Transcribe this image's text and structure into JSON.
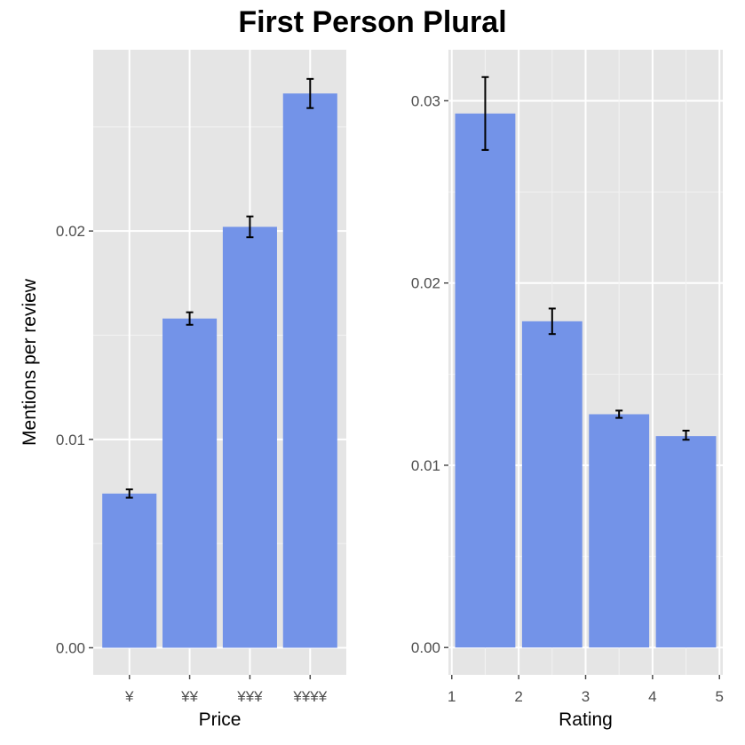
{
  "title": "First Person Plural",
  "colors": {
    "panel_bg": "#e5e5e5",
    "grid_major": "#ffffff",
    "grid_minor": "#f2f2f2",
    "bar": "#7393e8",
    "errorbar": "#000000",
    "tick_label": "#4d4d4d"
  },
  "chart_data": [
    {
      "type": "bar",
      "xlabel": "Price",
      "ylabel": "Mentions per review",
      "categories": [
        "¥",
        "¥¥",
        "¥¥¥",
        "¥¥¥¥"
      ],
      "values": [
        0.0074,
        0.0158,
        0.0202,
        0.0266
      ],
      "error_low": [
        0.0072,
        0.0155,
        0.0197,
        0.0259
      ],
      "error_high": [
        0.0076,
        0.0161,
        0.0207,
        0.0273
      ],
      "ylim": [
        -0.0013,
        0.0287
      ],
      "yticks": [
        0,
        0.01,
        0.02
      ],
      "ytick_labels": [
        "0.00",
        "0.01",
        "0.02"
      ],
      "grid": true
    },
    {
      "type": "bar",
      "xlabel": "Rating",
      "ylabel": "",
      "x_centers": [
        1.5,
        2.5,
        3.5,
        4.5
      ],
      "bar_width": 0.9,
      "values": [
        0.0293,
        0.0179,
        0.0128,
        0.0116
      ],
      "error_low": [
        0.0273,
        0.0172,
        0.0126,
        0.0114
      ],
      "error_high": [
        0.0313,
        0.0186,
        0.013,
        0.0119
      ],
      "xlim": [
        0.95,
        5.05
      ],
      "xticks": [
        1,
        2,
        3,
        4,
        5
      ],
      "xtick_labels": [
        "1",
        "2",
        "3",
        "4",
        "5"
      ],
      "ylim": [
        -0.0015,
        0.0328
      ],
      "yticks": [
        0,
        0.01,
        0.02,
        0.03
      ],
      "ytick_labels": [
        "0.00",
        "0.01",
        "0.02",
        "0.03"
      ],
      "grid": true
    }
  ]
}
